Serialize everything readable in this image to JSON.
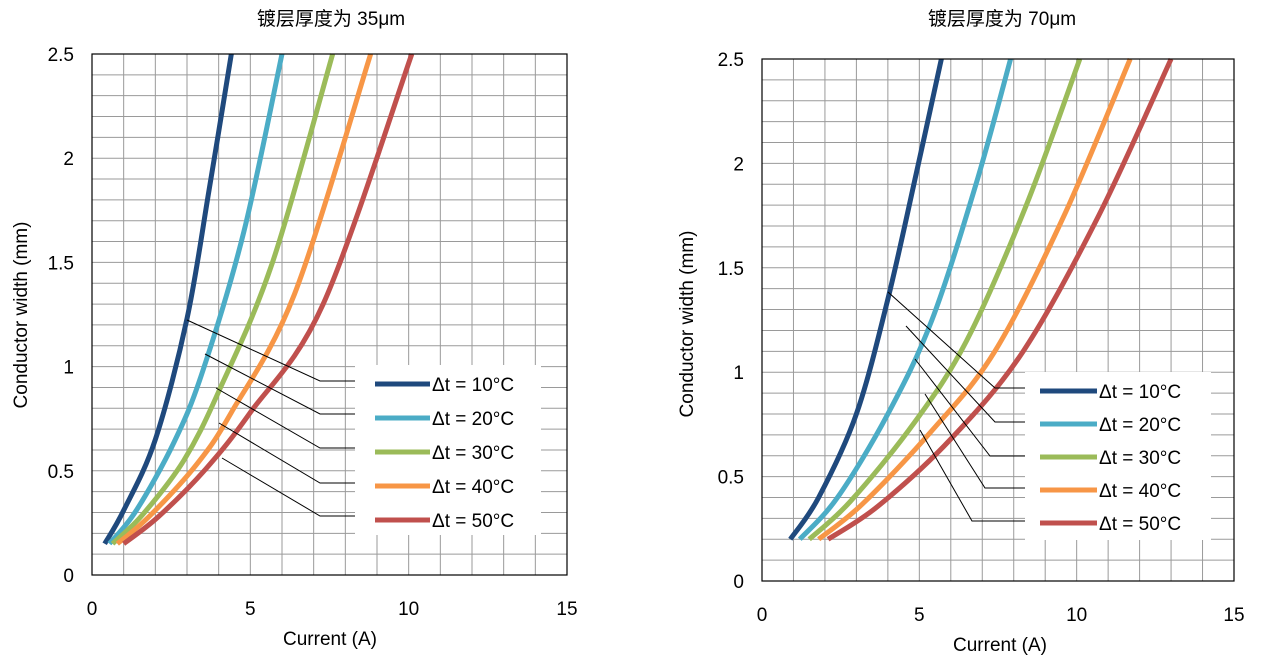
{
  "chart_data": [
    {
      "type": "line",
      "title": "镀层厚度为 35μm",
      "xlabel": "Current (A)",
      "ylabel": "Conductor width (mm)",
      "xlim": [
        0,
        15
      ],
      "ylim": [
        0,
        2.5
      ],
      "x_ticks": [
        0,
        5,
        10,
        15
      ],
      "x_tick_labels": [
        "0",
        "5",
        "10",
        "15"
      ],
      "y_ticks": [
        0,
        0.5,
        1,
        1.5,
        2,
        2.5
      ],
      "y_tick_labels": [
        "0",
        "0.5",
        "1",
        "1.5",
        "2",
        "2.5"
      ],
      "grid": true,
      "legend_position": "right",
      "series": [
        {
          "name": "Δt = 10°C",
          "color": "#1f497d",
          "x": [
            0.4,
            1.0,
            2.0,
            3.0,
            3.7,
            4.4
          ],
          "y": [
            0.15,
            0.31,
            0.65,
            1.23,
            1.85,
            2.5
          ]
        },
        {
          "name": "Δt = 20°C",
          "color": "#4bacc6",
          "x": [
            0.55,
            1.4,
            2.6,
            3.5,
            4.8,
            6.0
          ],
          "y": [
            0.15,
            0.31,
            0.64,
            0.98,
            1.65,
            2.5
          ]
        },
        {
          "name": "Δt = 30°C",
          "color": "#9bbb59",
          "x": [
            0.65,
            1.6,
            2.9,
            4.0,
            5.7,
            7.6
          ],
          "y": [
            0.15,
            0.29,
            0.55,
            0.88,
            1.5,
            2.5
          ]
        },
        {
          "name": "Δt = 40°C",
          "color": "#f79646",
          "x": [
            0.8,
            1.8,
            3.3,
            4.4,
            6.4,
            8.8
          ],
          "y": [
            0.15,
            0.28,
            0.53,
            0.78,
            1.35,
            2.5
          ]
        },
        {
          "name": "Δt = 50°C",
          "color": "#c0504d",
          "x": [
            1.0,
            2.1,
            3.6,
            5.0,
            7.3,
            10.1
          ],
          "y": [
            0.15,
            0.28,
            0.51,
            0.78,
            1.3,
            2.5
          ]
        }
      ]
    },
    {
      "type": "line",
      "title": "镀层厚度为 70μm",
      "xlabel": "Current (A)",
      "ylabel": "Conductor width (mm)",
      "xlim": [
        0,
        15
      ],
      "ylim": [
        0,
        2.5
      ],
      "x_ticks": [
        0,
        5,
        10,
        15
      ],
      "x_tick_labels": [
        "0",
        "5",
        "10",
        "15"
      ],
      "y_ticks": [
        0,
        0.5,
        1,
        1.5,
        2,
        2.5
      ],
      "y_tick_labels": [
        "0",
        "0.5",
        "1",
        "1.5",
        "2",
        "2.5"
      ],
      "grid": true,
      "legend_position": "right",
      "series": [
        {
          "name": "Δt = 10°C",
          "color": "#1f497d",
          "x": [
            0.9,
            1.8,
            3.0,
            4.0,
            4.9,
            5.7
          ],
          "y": [
            0.2,
            0.4,
            0.8,
            1.35,
            1.95,
            2.5
          ]
        },
        {
          "name": "Δt = 20°C",
          "color": "#4bacc6",
          "x": [
            1.2,
            2.4,
            4.0,
            5.4,
            6.8,
            7.9
          ],
          "y": [
            0.2,
            0.4,
            0.8,
            1.25,
            1.9,
            2.5
          ]
        },
        {
          "name": "Δt = 30°C",
          "color": "#9bbb59",
          "x": [
            1.5,
            2.8,
            4.8,
            6.5,
            8.4,
            10.1
          ],
          "y": [
            0.2,
            0.38,
            0.75,
            1.15,
            1.8,
            2.5
          ]
        },
        {
          "name": "Δt = 40°C",
          "color": "#f79646",
          "x": [
            1.8,
            3.2,
            5.4,
            7.4,
            9.6,
            11.7
          ],
          "y": [
            0.2,
            0.37,
            0.72,
            1.1,
            1.75,
            2.5
          ]
        },
        {
          "name": "Δt = 50°C",
          "color": "#c0504d",
          "x": [
            2.1,
            3.7,
            6.0,
            8.3,
            10.7,
            13.0
          ],
          "y": [
            0.2,
            0.36,
            0.68,
            1.1,
            1.75,
            2.5
          ]
        }
      ]
    }
  ]
}
